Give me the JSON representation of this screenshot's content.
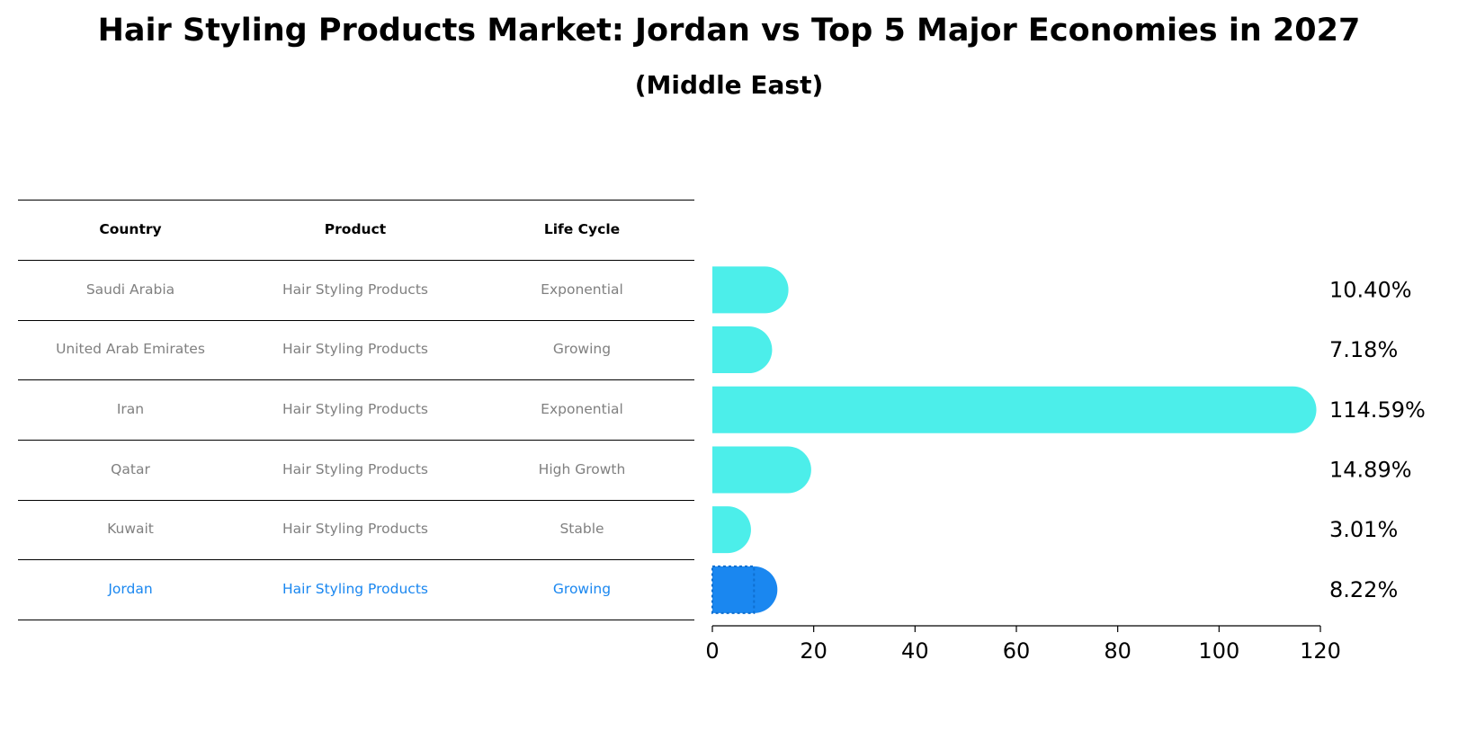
{
  "title": "Hair Styling Products Market: Jordan vs Top 5 Major Economies in 2027",
  "subtitle": "(Middle East)",
  "colors": {
    "bar": "#4ceeea",
    "highlight": "#1a87f0",
    "muted_text": "#808080",
    "highlight_text": "#1a87f0"
  },
  "table": {
    "headers": [
      "Country",
      "Product",
      "Life Cycle"
    ],
    "rows": [
      {
        "country": "Saudi Arabia",
        "product": "Hair Styling Products",
        "life_cycle": "Exponential"
      },
      {
        "country": "United Arab Emirates",
        "product": "Hair Styling Products",
        "life_cycle": "Growing"
      },
      {
        "country": "Iran",
        "product": "Hair Styling Products",
        "life_cycle": "Exponential"
      },
      {
        "country": "Qatar",
        "product": "Hair Styling Products",
        "life_cycle": "High Growth"
      },
      {
        "country": "Kuwait",
        "product": "Hair Styling Products",
        "life_cycle": "Stable"
      },
      {
        "country": "Jordan",
        "product": "Hair Styling Products",
        "life_cycle": "Growing"
      }
    ]
  },
  "chart_data": {
    "type": "bar",
    "orientation": "horizontal",
    "title": "Hair Styling Products Market: Jordan vs Top 5 Major Economies in 2027",
    "subtitle": "(Middle East)",
    "categories": [
      "Saudi Arabia",
      "United Arab Emirates",
      "Iran",
      "Qatar",
      "Kuwait",
      "Jordan"
    ],
    "values": [
      10.4,
      7.18,
      114.59,
      14.89,
      3.01,
      8.22
    ],
    "value_labels": [
      "10.40%",
      "7.18%",
      "114.59%",
      "14.89%",
      "3.01%",
      "8.22%"
    ],
    "highlight": "Jordan",
    "xlim": [
      0,
      120
    ],
    "xticks": [
      0,
      20,
      40,
      60,
      80,
      100,
      120
    ],
    "xlabel": "",
    "ylabel": "",
    "grid": false
  }
}
